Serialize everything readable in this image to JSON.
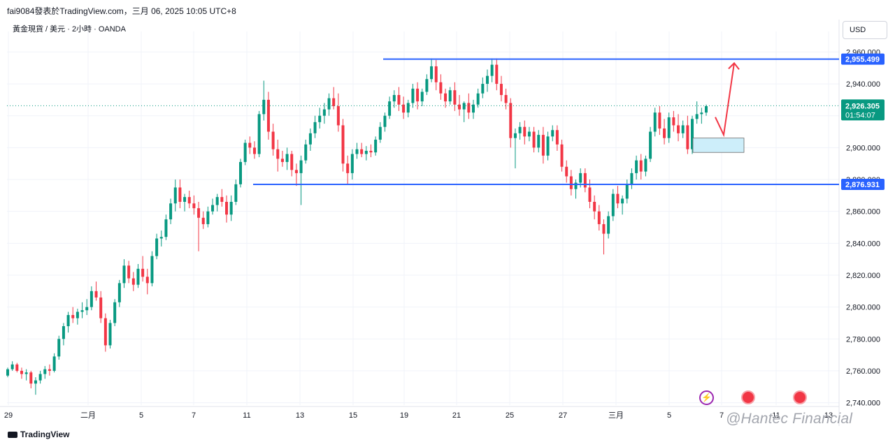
{
  "header": {
    "published_by": "fai9084發表於TradingView.com，三月 06, 2025 10:05 UTC+8",
    "symbol_info": "黃金現貨 / 美元 · 2小時 · OANDA",
    "currency": "USD"
  },
  "footer": {
    "logo_text": "TradingView",
    "watermark": "@Hantec Financial"
  },
  "colors": {
    "up": "#089981",
    "down": "#f23645",
    "level_line": "#2962ff",
    "current_price": "#089981",
    "arrow": "#f23645",
    "zone_fill": "#cdeefa",
    "zone_border": "#666666"
  },
  "events": [
    {
      "icon": "lightning-icon",
      "symbol": "⚡"
    },
    {
      "icon": "us-flag-icon",
      "symbol": "🇺🇸"
    },
    {
      "icon": "us-flag-icon",
      "symbol": "🇺🇸"
    }
  ],
  "chart_data": {
    "type": "candlestick",
    "title": "",
    "xlabel": "",
    "ylabel": "",
    "ylim": [
      2730,
      2970
    ],
    "y_ticks": [
      2740,
      2760,
      2780,
      2800,
      2820,
      2840,
      2860,
      2880,
      2900,
      2920,
      2940,
      2960
    ],
    "y_tick_labels": [
      "2,740.000",
      "2,760.000",
      "2,780.000",
      "2,800.000",
      "2,820.000",
      "2,840.000",
      "2,860.000",
      "2,880.000",
      "2,900.000",
      "2,920.000",
      "2,940.000",
      "2,960.000"
    ],
    "x_tick_labels": [
      "29",
      "二月",
      "5",
      "7",
      "11",
      "13",
      "15",
      "19",
      "21",
      "25",
      "27",
      "三月",
      "5",
      "7",
      "11",
      "13"
    ],
    "grid": true,
    "horizontal_levels": [
      {
        "label": "2,955.499",
        "value": 2955.499,
        "from_date": "2月18日"
      },
      {
        "label": "2,876.931",
        "value": 2876.931,
        "from_date": "2月11日"
      }
    ],
    "current_price": {
      "label": "2,926.305",
      "countdown": "01:54:07",
      "value": 2926.305
    },
    "support_zone": {
      "low": 2897,
      "high": 2906
    },
    "projection_arrow": {
      "from": 2906,
      "via": 2908,
      "to": 2953
    },
    "series": [
      {
        "values": [
          [
            2757,
            2762,
            2756,
            2761
          ],
          [
            2761,
            2766,
            2760,
            2764
          ],
          [
            2764,
            2765,
            2759,
            2760
          ],
          [
            2760,
            2762,
            2755,
            2758
          ],
          [
            2758,
            2761,
            2754,
            2759
          ],
          [
            2759,
            2760,
            2749,
            2752
          ],
          [
            2752,
            2756,
            2745,
            2754
          ],
          [
            2754,
            2760,
            2752,
            2758
          ],
          [
            2758,
            2763,
            2755,
            2761
          ],
          [
            2761,
            2764,
            2757,
            2760
          ],
          [
            2760,
            2771,
            2759,
            2769
          ],
          [
            2769,
            2782,
            2767,
            2780
          ],
          [
            2780,
            2790,
            2776,
            2788
          ],
          [
            2788,
            2797,
            2784,
            2795
          ],
          [
            2795,
            2800,
            2790,
            2793
          ],
          [
            2793,
            2799,
            2789,
            2797
          ],
          [
            2797,
            2803,
            2793,
            2798
          ],
          [
            2798,
            2805,
            2795,
            2800
          ],
          [
            2800,
            2813,
            2798,
            2810
          ],
          [
            2810,
            2816,
            2804,
            2806
          ],
          [
            2806,
            2810,
            2790,
            2793
          ],
          [
            2793,
            2796,
            2772,
            2776
          ],
          [
            2776,
            2792,
            2774,
            2790
          ],
          [
            2790,
            2805,
            2788,
            2803
          ],
          [
            2803,
            2817,
            2800,
            2815
          ],
          [
            2815,
            2830,
            2812,
            2826
          ],
          [
            2826,
            2829,
            2815,
            2818
          ],
          [
            2818,
            2822,
            2810,
            2814
          ],
          [
            2814,
            2827,
            2812,
            2824
          ],
          [
            2824,
            2832,
            2816,
            2819
          ],
          [
            2819,
            2824,
            2808,
            2815
          ],
          [
            2815,
            2835,
            2813,
            2832
          ],
          [
            2832,
            2846,
            2830,
            2843
          ],
          [
            2843,
            2848,
            2838,
            2844
          ],
          [
            2844,
            2858,
            2842,
            2855
          ],
          [
            2855,
            2868,
            2852,
            2865
          ],
          [
            2865,
            2880,
            2860,
            2875
          ],
          [
            2875,
            2880,
            2862,
            2866
          ],
          [
            2866,
            2871,
            2860,
            2869
          ],
          [
            2869,
            2873,
            2862,
            2865
          ],
          [
            2865,
            2870,
            2858,
            2862
          ],
          [
            2862,
            2866,
            2835,
            2856
          ],
          [
            2856,
            2860,
            2849,
            2852
          ],
          [
            2852,
            2863,
            2850,
            2860
          ],
          [
            2860,
            2868,
            2858,
            2864
          ],
          [
            2864,
            2871,
            2860,
            2869
          ],
          [
            2869,
            2874,
            2863,
            2866
          ],
          [
            2866,
            2870,
            2853,
            2858
          ],
          [
            2858,
            2870,
            2854,
            2866
          ],
          [
            2866,
            2880,
            2864,
            2877
          ],
          [
            2877,
            2893,
            2875,
            2891
          ],
          [
            2891,
            2905,
            2889,
            2903
          ],
          [
            2903,
            2907,
            2896,
            2900
          ],
          [
            2900,
            2904,
            2893,
            2896
          ],
          [
            2896,
            2923,
            2894,
            2921
          ],
          [
            2921,
            2942,
            2917,
            2930
          ],
          [
            2930,
            2935,
            2905,
            2910
          ],
          [
            2910,
            2915,
            2895,
            2899
          ],
          [
            2899,
            2905,
            2885,
            2893
          ],
          [
            2893,
            2898,
            2888,
            2891
          ],
          [
            2891,
            2900,
            2886,
            2896
          ],
          [
            2896,
            2898,
            2882,
            2886
          ],
          [
            2886,
            2890,
            2876,
            2884
          ],
          [
            2884,
            2895,
            2864,
            2892
          ],
          [
            2892,
            2905,
            2890,
            2902
          ],
          [
            2902,
            2912,
            2898,
            2909
          ],
          [
            2909,
            2920,
            2906,
            2916
          ],
          [
            2916,
            2925,
            2912,
            2920
          ],
          [
            2920,
            2928,
            2915,
            2924
          ],
          [
            2924,
            2934,
            2920,
            2931
          ],
          [
            2931,
            2938,
            2924,
            2926
          ],
          [
            2926,
            2934,
            2910,
            2914
          ],
          [
            2914,
            2918,
            2885,
            2890
          ],
          [
            2890,
            2895,
            2877,
            2884
          ],
          [
            2884,
            2899,
            2880,
            2896
          ],
          [
            2896,
            2903,
            2893,
            2899
          ],
          [
            2899,
            2903,
            2894,
            2896
          ],
          [
            2896,
            2901,
            2892,
            2898
          ],
          [
            2898,
            2902,
            2894,
            2897
          ],
          [
            2897,
            2907,
            2895,
            2905
          ],
          [
            2905,
            2916,
            2903,
            2913
          ],
          [
            2913,
            2922,
            2910,
            2920
          ],
          [
            2920,
            2932,
            2918,
            2929
          ],
          [
            2929,
            2936,
            2925,
            2933
          ],
          [
            2933,
            2938,
            2923,
            2927
          ],
          [
            2927,
            2932,
            2918,
            2922
          ],
          [
            2922,
            2930,
            2919,
            2928
          ],
          [
            2928,
            2940,
            2925,
            2937
          ],
          [
            2937,
            2941,
            2924,
            2929
          ],
          [
            2929,
            2937,
            2926,
            2935
          ],
          [
            2935,
            2946,
            2933,
            2943
          ],
          [
            2943,
            2956,
            2941,
            2951
          ],
          [
            2951,
            2955,
            2936,
            2941
          ],
          [
            2941,
            2946,
            2930,
            2934
          ],
          [
            2934,
            2937,
            2925,
            2929
          ],
          [
            2929,
            2938,
            2927,
            2936
          ],
          [
            2936,
            2941,
            2923,
            2927
          ],
          [
            2927,
            2933,
            2920,
            2924
          ],
          [
            2924,
            2929,
            2916,
            2928
          ],
          [
            2928,
            2934,
            2918,
            2922
          ],
          [
            2922,
            2930,
            2918,
            2927
          ],
          [
            2927,
            2937,
            2925,
            2934
          ],
          [
            2934,
            2944,
            2931,
            2940
          ],
          [
            2940,
            2949,
            2935,
            2945
          ],
          [
            2945,
            2956,
            2941,
            2952
          ],
          [
            2952,
            2956,
            2936,
            2940
          ],
          [
            2940,
            2945,
            2929,
            2933
          ],
          [
            2933,
            2937,
            2924,
            2928
          ],
          [
            2928,
            2931,
            2900,
            2906
          ],
          [
            2906,
            2912,
            2887,
            2909
          ],
          [
            2909,
            2916,
            2905,
            2913
          ],
          [
            2913,
            2917,
            2902,
            2907
          ],
          [
            2907,
            2913,
            2904,
            2910
          ],
          [
            2910,
            2913,
            2897,
            2900
          ],
          [
            2900,
            2911,
            2897,
            2908
          ],
          [
            2908,
            2913,
            2890,
            2895
          ],
          [
            2895,
            2910,
            2892,
            2907
          ],
          [
            2907,
            2914,
            2904,
            2911
          ],
          [
            2911,
            2914,
            2898,
            2902
          ],
          [
            2902,
            2905,
            2885,
            2888
          ],
          [
            2888,
            2892,
            2878,
            2882
          ],
          [
            2882,
            2886,
            2870,
            2874
          ],
          [
            2874,
            2880,
            2868,
            2878
          ],
          [
            2878,
            2887,
            2875,
            2884
          ],
          [
            2884,
            2887,
            2872,
            2875
          ],
          [
            2875,
            2880,
            2862,
            2866
          ],
          [
            2866,
            2870,
            2855,
            2860
          ],
          [
            2860,
            2864,
            2848,
            2852
          ],
          [
            2852,
            2855,
            2833,
            2846
          ],
          [
            2846,
            2860,
            2843,
            2857
          ],
          [
            2857,
            2874,
            2854,
            2871
          ],
          [
            2871,
            2876,
            2862,
            2865
          ],
          [
            2865,
            2870,
            2858,
            2868
          ],
          [
            2868,
            2880,
            2865,
            2877
          ],
          [
            2877,
            2887,
            2874,
            2884
          ],
          [
            2884,
            2895,
            2880,
            2892
          ],
          [
            2892,
            2896,
            2880,
            2885
          ],
          [
            2885,
            2895,
            2882,
            2893
          ],
          [
            2893,
            2913,
            2891,
            2910
          ],
          [
            2910,
            2925,
            2907,
            2922
          ],
          [
            2922,
            2926,
            2908,
            2912
          ],
          [
            2912,
            2918,
            2902,
            2906
          ],
          [
            2906,
            2922,
            2903,
            2919
          ],
          [
            2919,
            2923,
            2910,
            2914
          ],
          [
            2914,
            2921,
            2904,
            2909
          ],
          [
            2909,
            2917,
            2906,
            2914
          ],
          [
            2914,
            2920,
            2896,
            2899
          ],
          [
            2899,
            2920,
            2896,
            2918
          ],
          [
            2918,
            2929,
            2915,
            2921
          ],
          [
            2921,
            2925,
            2915,
            2922
          ],
          [
            2922,
            2927,
            2920,
            2926
          ]
        ]
      }
    ]
  }
}
